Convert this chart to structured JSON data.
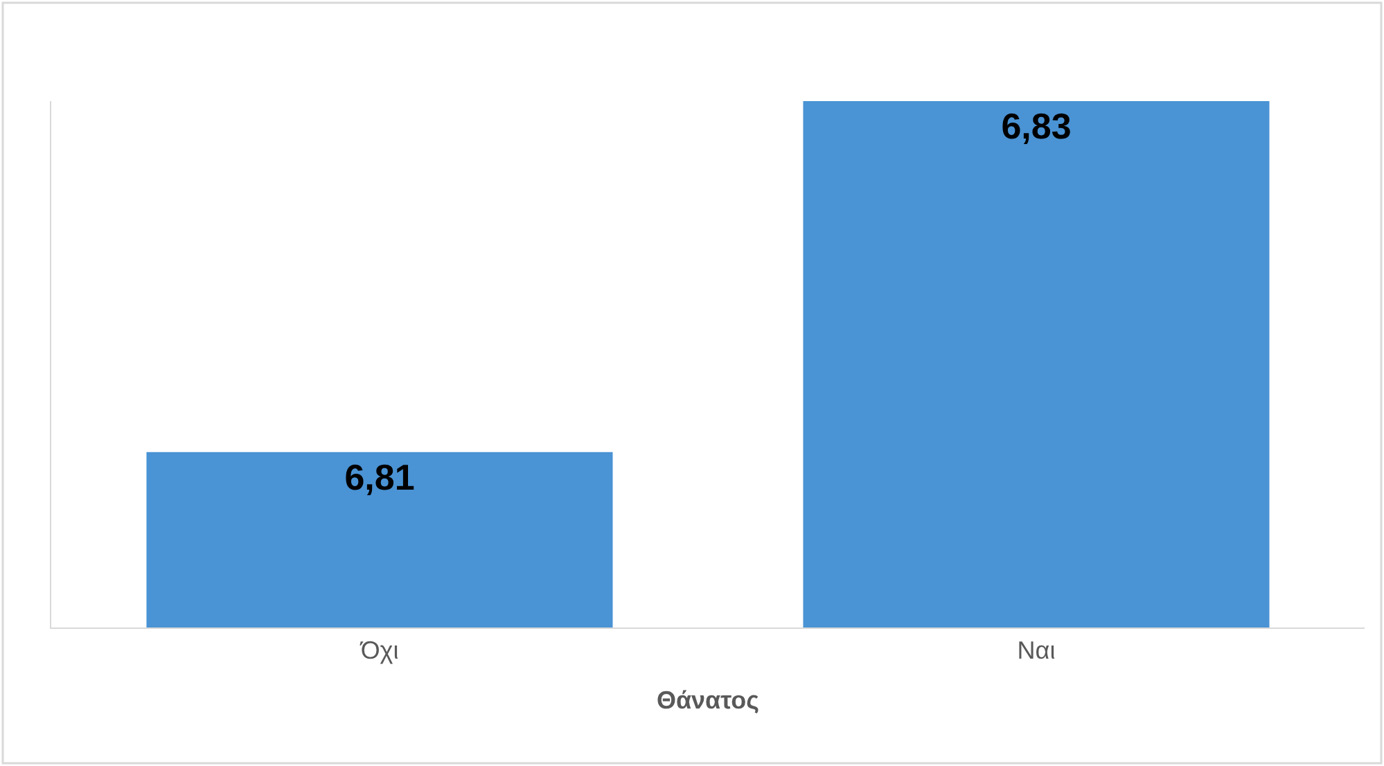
{
  "chart_data": {
    "type": "bar",
    "xlabel": "Θάνατος",
    "categories": [
      "Όχι",
      "Ναι"
    ],
    "values": [
      6.81,
      6.83
    ],
    "value_labels": [
      "6,81",
      "6,83"
    ],
    "color": "#4a93d4",
    "ylim": [
      6.8,
      6.83
    ],
    "tick_labels": "x"
  }
}
